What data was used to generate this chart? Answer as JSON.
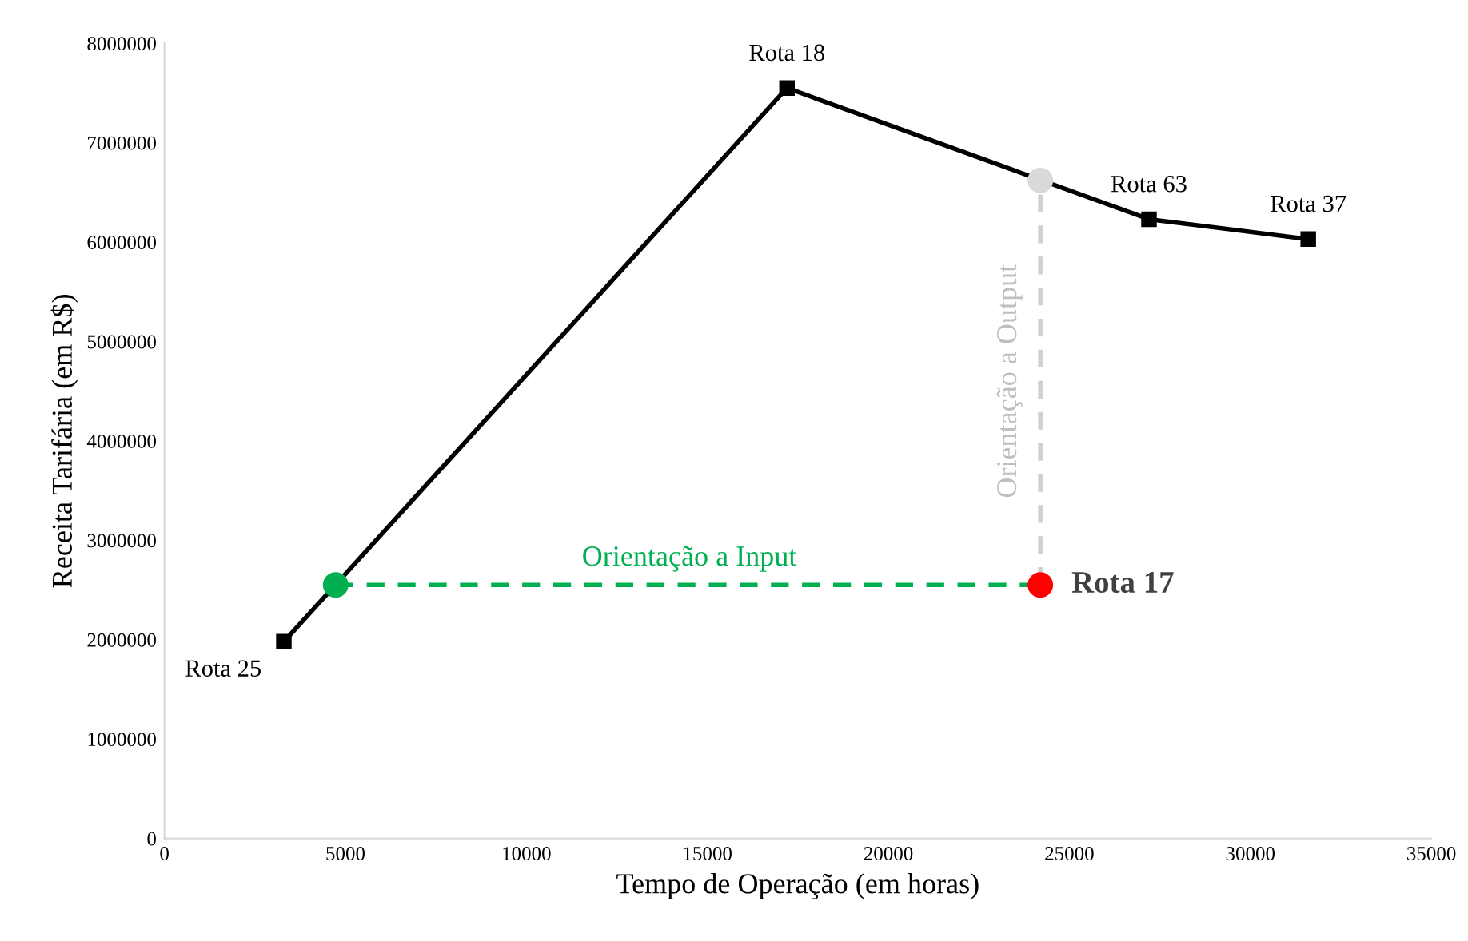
{
  "chart_data": {
    "type": "line",
    "xlabel": "Tempo de Operação (em horas)",
    "ylabel": "Receita Tarifária (em R$)",
    "xlim": [
      0,
      35000
    ],
    "xticks": [
      0,
      5000,
      10000,
      15000,
      20000,
      25000,
      30000,
      35000
    ],
    "ylim": [
      0,
      8000000
    ],
    "yticks": [
      0,
      1000000,
      2000000,
      3000000,
      4000000,
      5000000,
      6000000,
      7000000,
      8000000
    ],
    "grid": false,
    "legend": false,
    "series": [
      {
        "color": "#000000",
        "marker": "square",
        "line_style": "solid",
        "x": [
          3300,
          17200,
          27200,
          31600
        ],
        "values": [
          1980000,
          7550000,
          6230000,
          6030000
        ]
      },
      {
        "color": "#00b050",
        "marker": "none",
        "line_style": "dashed",
        "x": [
          4730,
          24200
        ],
        "values": [
          2550000,
          2550000
        ]
      },
      {
        "color": "#d0d0d0",
        "marker": "none",
        "line_style": "dashed",
        "x": [
          24200,
          24200
        ],
        "values": [
          2550000,
          6620000
        ]
      },
      {
        "type": "scatter",
        "color": "#00b050",
        "marker": "circle",
        "x": [
          4730
        ],
        "values": [
          2550000
        ]
      },
      {
        "type": "scatter",
        "color": "#d9d9d9",
        "marker": "circle",
        "x": [
          24200
        ],
        "values": [
          6620000
        ]
      },
      {
        "type": "scatter",
        "color": "#ff0000",
        "marker": "circle",
        "x": [
          24200
        ],
        "values": [
          2550000
        ]
      }
    ],
    "annotations": [
      {
        "text": "Rota 25",
        "x": 3300,
        "y": 1980000
      },
      {
        "text": "Rota 18",
        "x": 17200,
        "y": 7550000
      },
      {
        "text": "Rota 63",
        "x": 27200,
        "y": 6230000
      },
      {
        "text": "Rota 37",
        "x": 31600,
        "y": 6030000
      },
      {
        "text": "Rota 17",
        "x": 24200,
        "y": 2550000
      },
      {
        "text": "Orientação a Input",
        "x": 14500,
        "y": 2550000
      },
      {
        "text": "Orientação a Output",
        "x": 24200,
        "y": 4600000
      }
    ]
  }
}
